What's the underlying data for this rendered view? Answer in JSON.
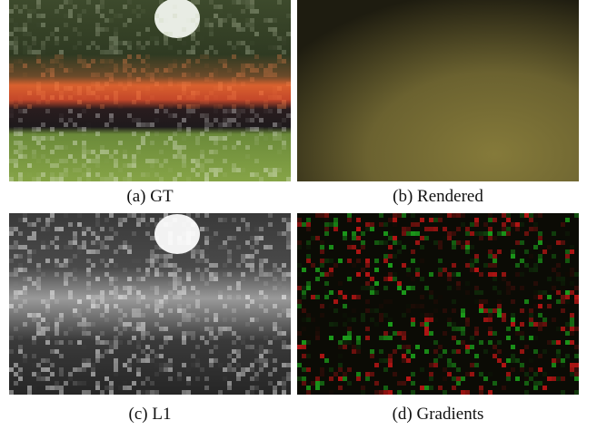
{
  "panels": [
    {
      "caption": "(a) GT"
    },
    {
      "caption": "(b) Rendered"
    },
    {
      "caption": "(c) L1"
    },
    {
      "caption": "(d) Gradients"
    }
  ]
}
